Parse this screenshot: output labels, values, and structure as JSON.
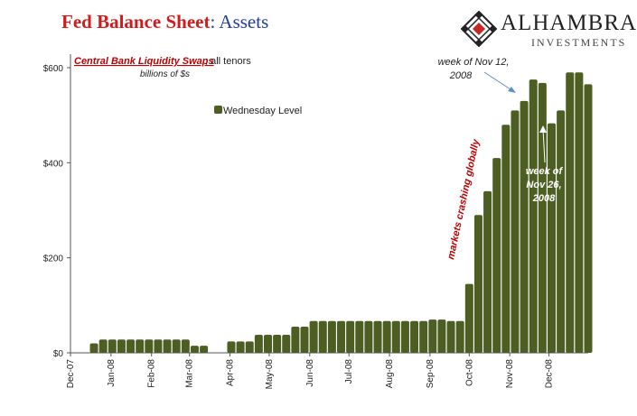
{
  "title": {
    "part1": "Fed Balance Sheet",
    "part2": ": Assets"
  },
  "logo": {
    "name": "ALHAMBRA",
    "sub": "INVESTMENTS",
    "colors": {
      "dark": "#222222",
      "accent": "#c62828"
    }
  },
  "colors": {
    "bar": "#4d5e23",
    "annotation_red": "#c00000",
    "arrow": "#5b8fc9",
    "text": "#222222"
  },
  "chart_data": {
    "type": "bar",
    "title": "Central Bank Liquidity Swaps",
    "title_suffix": "; all tenors",
    "subtitle": "billions of $s",
    "legend": "Wednesday Level",
    "legend_position": "top-left",
    "ylim": [
      0,
      600
    ],
    "yticks": [
      0,
      200,
      400,
      600
    ],
    "ytick_labels": [
      "$0",
      "$200",
      "$400",
      "$600"
    ],
    "xticks": [
      "2007-12-01",
      "2008-01-01",
      "2008-02-01",
      "2008-03-01",
      "2008-04-01",
      "2008-05-01",
      "2008-06-01",
      "2008-07-01",
      "2008-08-01",
      "2008-09-01",
      "2008-10-01",
      "2008-11-01",
      "2008-12-01"
    ],
    "xtick_labels": [
      "Dec-07",
      "Jan-08",
      "Feb-08",
      "Mar-08",
      "Apr-08",
      "May-08",
      "Jun-08",
      "Jul-08",
      "Aug-08",
      "Sep-08",
      "Oct-08",
      "Nov-08",
      "Dec-08"
    ],
    "xlim": [
      "2007-12-01",
      "2008-12-31"
    ],
    "grid": false,
    "series": [
      {
        "name": "Wednesday Level",
        "x": [
          "2007-12-19",
          "2007-12-26",
          "2008-01-02",
          "2008-01-09",
          "2008-01-16",
          "2008-01-23",
          "2008-01-30",
          "2008-02-06",
          "2008-02-13",
          "2008-02-20",
          "2008-02-27",
          "2008-03-05",
          "2008-03-12",
          "2008-03-19",
          "2008-03-26",
          "2008-04-02",
          "2008-04-09",
          "2008-04-16",
          "2008-04-23",
          "2008-04-30",
          "2008-05-07",
          "2008-05-14",
          "2008-05-21",
          "2008-05-28",
          "2008-06-04",
          "2008-06-11",
          "2008-06-18",
          "2008-06-25",
          "2008-07-02",
          "2008-07-09",
          "2008-07-16",
          "2008-07-23",
          "2008-07-30",
          "2008-08-06",
          "2008-08-13",
          "2008-08-20",
          "2008-08-27",
          "2008-09-03",
          "2008-09-10",
          "2008-09-17",
          "2008-09-24",
          "2008-10-01",
          "2008-10-08",
          "2008-10-15",
          "2008-10-22",
          "2008-10-29",
          "2008-11-05",
          "2008-11-12",
          "2008-11-19",
          "2008-11-26",
          "2008-12-03",
          "2008-12-10",
          "2008-12-17",
          "2008-12-24",
          "2008-12-31"
        ],
        "values": [
          20,
          28,
          28,
          28,
          28,
          28,
          28,
          28,
          28,
          28,
          28,
          15,
          15,
          0,
          0,
          24,
          24,
          24,
          38,
          38,
          38,
          38,
          55,
          55,
          67,
          67,
          67,
          67,
          67,
          67,
          67,
          67,
          67,
          67,
          67,
          67,
          67,
          70,
          70,
          67,
          67,
          145,
          290,
          340,
          410,
          480,
          510,
          530,
          575,
          568,
          483,
          510,
          590,
          590,
          565
        ]
      }
    ],
    "annotations": [
      {
        "id": "nov12",
        "text_lines": [
          "week of Nov 12,",
          "2008"
        ],
        "x": "2008-11-12"
      },
      {
        "id": "nov26",
        "text_lines": [
          "week of",
          "Nov 26,",
          "2008"
        ],
        "x": "2008-11-26"
      },
      {
        "id": "crash",
        "text": "markets crashing globally"
      }
    ]
  }
}
